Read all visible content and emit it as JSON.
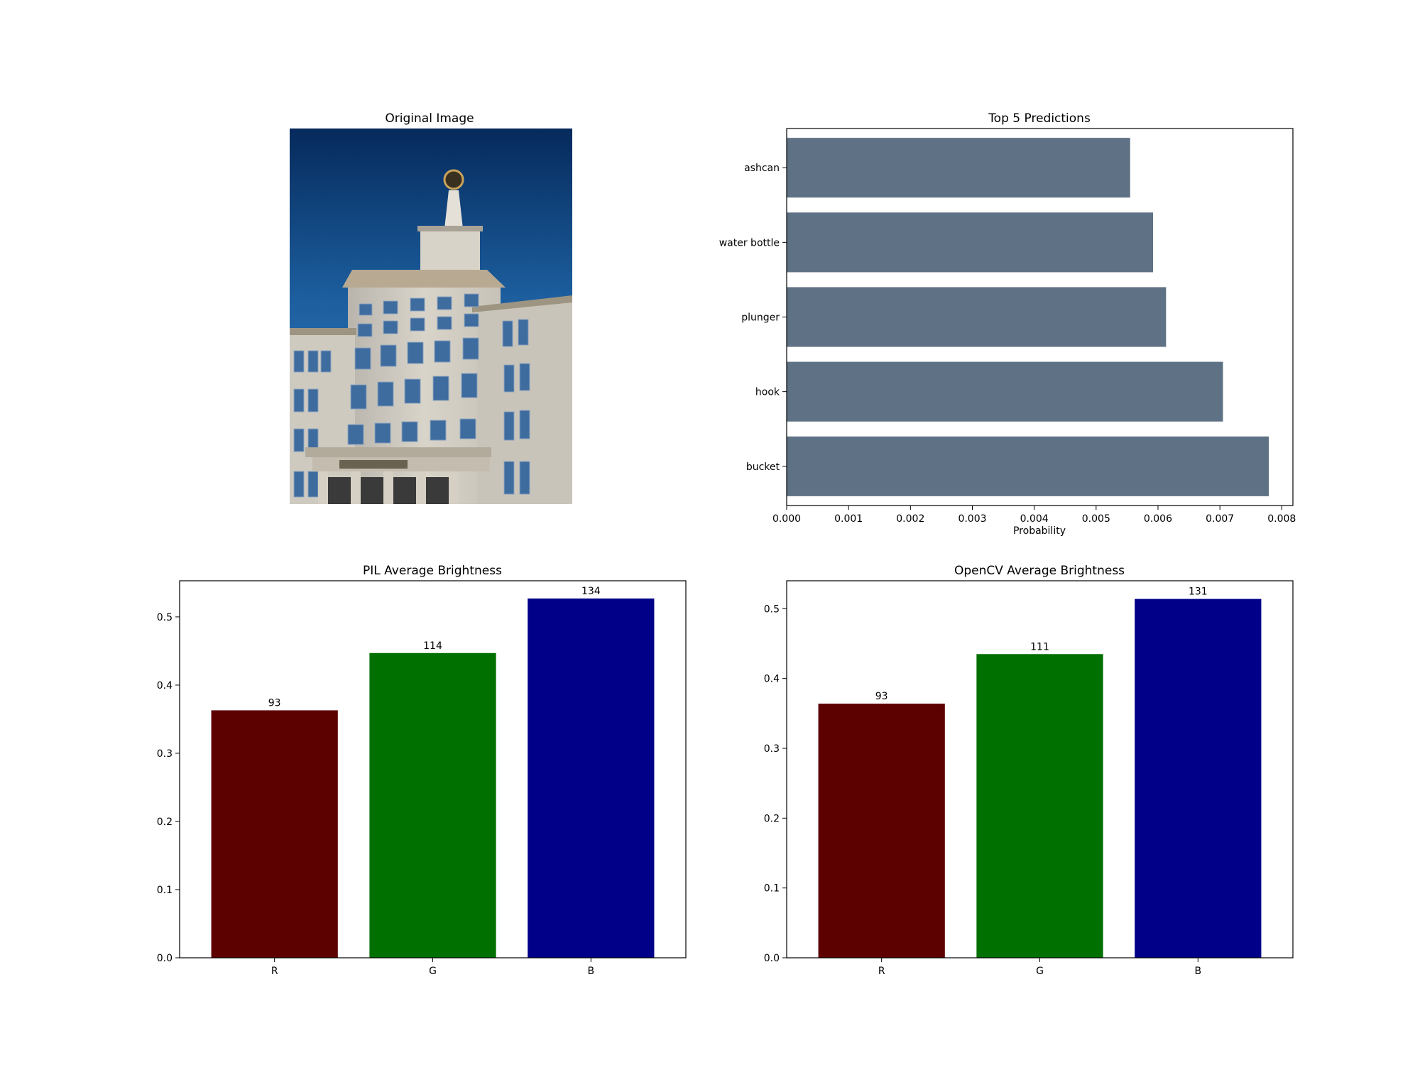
{
  "panels": {
    "image": {
      "title": "Original Image"
    }
  },
  "chart_data": [
    {
      "type": "bar",
      "orientation": "horizontal",
      "title": "Top 5 Predictions",
      "xlabel": "Probability",
      "ylabel": "",
      "categories": [
        "bucket",
        "hook",
        "plunger",
        "water bottle",
        "ashcan"
      ],
      "values": [
        0.00779,
        0.00705,
        0.00613,
        0.00592,
        0.00555
      ],
      "xlim": [
        0,
        0.00818
      ],
      "xticks": [
        0.0,
        0.001,
        0.002,
        0.003,
        0.004,
        0.005,
        0.006,
        0.007,
        0.008
      ],
      "xtick_labels": [
        "0.000",
        "0.001",
        "0.002",
        "0.003",
        "0.004",
        "0.005",
        "0.006",
        "0.007",
        "0.008"
      ],
      "bar_color": "#5f7285",
      "grid": false
    },
    {
      "type": "bar",
      "title": "PIL Average Brightness",
      "xlabel": "",
      "ylabel": "",
      "categories": [
        "R",
        "G",
        "B"
      ],
      "values": [
        0.363,
        0.447,
        0.527
      ],
      "data_labels": [
        "93",
        "114",
        "134"
      ],
      "colors": [
        "#5c0000",
        "#007000",
        "#000088"
      ],
      "ylim": [
        0,
        0.553
      ],
      "yticks": [
        0.0,
        0.1,
        0.2,
        0.3,
        0.4,
        0.5
      ],
      "ytick_labels": [
        "0.0",
        "0.1",
        "0.2",
        "0.3",
        "0.4",
        "0.5"
      ],
      "grid": false
    },
    {
      "type": "bar",
      "title": "OpenCV Average Brightness",
      "xlabel": "",
      "ylabel": "",
      "categories": [
        "R",
        "G",
        "B"
      ],
      "values": [
        0.364,
        0.435,
        0.514
      ],
      "data_labels": [
        "93",
        "111",
        "131"
      ],
      "colors": [
        "#5c0000",
        "#007000",
        "#000088"
      ],
      "ylim": [
        0,
        0.54
      ],
      "yticks": [
        0.0,
        0.1,
        0.2,
        0.3,
        0.4,
        0.5
      ],
      "ytick_labels": [
        "0.0",
        "0.1",
        "0.2",
        "0.3",
        "0.4",
        "0.5"
      ],
      "grid": false
    }
  ]
}
